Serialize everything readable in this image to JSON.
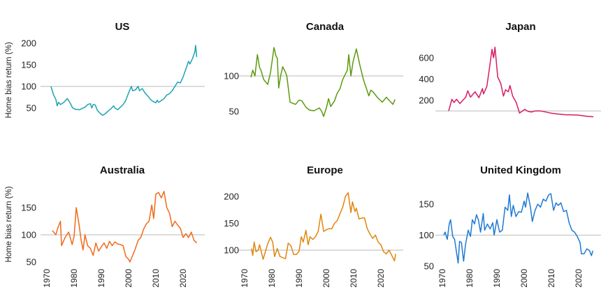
{
  "ylabel": "Home bias return (%)",
  "chart_data": [
    {
      "type": "line",
      "title": "US",
      "color": "#1ba3b3",
      "reference": 100,
      "yticks": [
        50,
        100,
        150,
        200
      ],
      "xticks": [],
      "points": [
        [
          1971.5,
          100
        ],
        [
          1972.5,
          80
        ],
        [
          1973.3,
          70
        ],
        [
          1973.8,
          55
        ],
        [
          1974.3,
          63
        ],
        [
          1975,
          58
        ],
        [
          1976,
          62
        ],
        [
          1977,
          68
        ],
        [
          1977.5,
          72
        ],
        [
          1978.5,
          62
        ],
        [
          1979.5,
          50
        ],
        [
          1980.5,
          47
        ],
        [
          1982,
          46
        ],
        [
          1983,
          49
        ],
        [
          1984,
          52
        ],
        [
          1985,
          58
        ],
        [
          1986,
          60
        ],
        [
          1986.5,
          50
        ],
        [
          1987,
          58
        ],
        [
          1987.8,
          57
        ],
        [
          1988.5,
          45
        ],
        [
          1989.5,
          38
        ],
        [
          1990.5,
          33
        ],
        [
          1991.5,
          37
        ],
        [
          1992.5,
          43
        ],
        [
          1993.5,
          48
        ],
        [
          1994.5,
          55
        ],
        [
          1995,
          50
        ],
        [
          1996,
          46
        ],
        [
          1997,
          52
        ],
        [
          1998,
          58
        ],
        [
          1999,
          68
        ],
        [
          2000,
          85
        ],
        [
          2001,
          100
        ],
        [
          2001.5,
          90
        ],
        [
          2002.5,
          92
        ],
        [
          2003.5,
          100
        ],
        [
          2004,
          90
        ],
        [
          2005,
          95
        ],
        [
          2006,
          85
        ],
        [
          2007,
          78
        ],
        [
          2008,
          70
        ],
        [
          2009,
          65
        ],
        [
          2010,
          62
        ],
        [
          2010.5,
          68
        ],
        [
          2011,
          63
        ],
        [
          2012,
          67
        ],
        [
          2013,
          72
        ],
        [
          2014,
          80
        ],
        [
          2015,
          83
        ],
        [
          2016,
          90
        ],
        [
          2017,
          100
        ],
        [
          2018,
          110
        ],
        [
          2019,
          108
        ],
        [
          2020,
          122
        ],
        [
          2021,
          140
        ],
        [
          2022,
          158
        ],
        [
          2022.5,
          152
        ],
        [
          2023.5,
          165
        ],
        [
          2024.3,
          180
        ],
        [
          2024.6,
          195
        ],
        [
          2025,
          168
        ]
      ]
    },
    {
      "type": "line",
      "title": "Canada",
      "color": "#5b9a0c",
      "reference": 100,
      "yticks": [
        50,
        100
      ],
      "xticks": [],
      "points": [
        [
          1972.3,
          98
        ],
        [
          1973,
          108
        ],
        [
          1973.8,
          100
        ],
        [
          1974.7,
          130
        ],
        [
          1975.5,
          112
        ],
        [
          1976,
          108
        ],
        [
          1977,
          95
        ],
        [
          1978.5,
          88
        ],
        [
          1979.5,
          105
        ],
        [
          1980.8,
          140
        ],
        [
          1981.5,
          128
        ],
        [
          1982,
          125
        ],
        [
          1982.5,
          83
        ],
        [
          1983.2,
          100
        ],
        [
          1984,
          113
        ],
        [
          1985,
          105
        ],
        [
          1985.5,
          100
        ],
        [
          1986.7,
          63
        ],
        [
          1988.7,
          60
        ],
        [
          1990,
          66
        ],
        [
          1991,
          65
        ],
        [
          1992.5,
          56
        ],
        [
          1993.8,
          52
        ],
        [
          1995.5,
          51
        ],
        [
          1997.4,
          55
        ],
        [
          1998.3,
          50
        ],
        [
          1999,
          43
        ],
        [
          2000,
          55
        ],
        [
          2000.8,
          68
        ],
        [
          2001.6,
          57
        ],
        [
          2003,
          65
        ],
        [
          2003.9,
          75
        ],
        [
          2005,
          82
        ],
        [
          2006,
          95
        ],
        [
          2007.7,
          108
        ],
        [
          2008.2,
          130
        ],
        [
          2009,
          100
        ],
        [
          2009.8,
          120
        ],
        [
          2011,
          138
        ],
        [
          2012.3,
          115
        ],
        [
          2013.6,
          95
        ],
        [
          2015.6,
          72
        ],
        [
          2016.3,
          80
        ],
        [
          2017,
          78
        ],
        [
          2018.7,
          70
        ],
        [
          2020.5,
          63
        ],
        [
          2022,
          70
        ],
        [
          2023.2,
          65
        ],
        [
          2024.4,
          60
        ],
        [
          2025.2,
          67
        ]
      ]
    },
    {
      "type": "line",
      "title": "Japan",
      "color": "#d61c63",
      "reference": 100,
      "yticks": [
        200,
        400,
        600
      ],
      "xticks": [],
      "points": [
        [
          1972.3,
          100
        ],
        [
          1973.5,
          210
        ],
        [
          1974.3,
          180
        ],
        [
          1975.2,
          210
        ],
        [
          1976.4,
          170
        ],
        [
          1978.6,
          230
        ],
        [
          1979.3,
          290
        ],
        [
          1980.3,
          230
        ],
        [
          1982,
          280
        ],
        [
          1983.4,
          225
        ],
        [
          1984.7,
          310
        ],
        [
          1985.1,
          260
        ],
        [
          1986.3,
          330
        ],
        [
          1987.2,
          490
        ],
        [
          1988.2,
          680
        ],
        [
          1988.8,
          600
        ],
        [
          1989.3,
          700
        ],
        [
          1990.3,
          420
        ],
        [
          1991.4,
          360
        ],
        [
          1992.4,
          240
        ],
        [
          1993.2,
          300
        ],
        [
          1994.2,
          280
        ],
        [
          1994.8,
          340
        ],
        [
          1995.8,
          240
        ],
        [
          1997.1,
          180
        ],
        [
          1998.3,
          80
        ],
        [
          2000.2,
          115
        ],
        [
          2001.5,
          95
        ],
        [
          2002.7,
          90
        ],
        [
          2004,
          100
        ],
        [
          2006.1,
          100
        ],
        [
          2008,
          90
        ],
        [
          2009.7,
          80
        ],
        [
          2012,
          72
        ],
        [
          2014.9,
          65
        ],
        [
          2017.5,
          63
        ],
        [
          2020,
          60
        ],
        [
          2022.9,
          50
        ],
        [
          2025.4,
          45
        ]
      ]
    },
    {
      "type": "line",
      "title": "Australia",
      "color": "#f06a1c",
      "reference": 100,
      "yticks": [
        50,
        100,
        150
      ],
      "xticks": [
        1970,
        1980,
        1990,
        2000,
        2010,
        2020
      ],
      "points": [
        [
          1972,
          108
        ],
        [
          1973.3,
          100
        ],
        [
          1974,
          112
        ],
        [
          1975,
          125
        ],
        [
          1975.4,
          80
        ],
        [
          1976.7,
          95
        ],
        [
          1978,
          105
        ],
        [
          1979.3,
          82
        ],
        [
          1980,
          97
        ],
        [
          1980.8,
          150
        ],
        [
          1981.8,
          120
        ],
        [
          1982.6,
          90
        ],
        [
          1983.3,
          72
        ],
        [
          1984,
          100
        ],
        [
          1985,
          80
        ],
        [
          1986,
          75
        ],
        [
          1987,
          62
        ],
        [
          1988,
          85
        ],
        [
          1989,
          70
        ],
        [
          1990,
          78
        ],
        [
          1991,
          85
        ],
        [
          1992,
          75
        ],
        [
          1993,
          88
        ],
        [
          1994,
          80
        ],
        [
          1995,
          87
        ],
        [
          1996,
          83
        ],
        [
          1997,
          82
        ],
        [
          1998,
          80
        ],
        [
          1999,
          60
        ],
        [
          2000,
          55
        ],
        [
          2000.5,
          50
        ],
        [
          2001.5,
          62
        ],
        [
          2002.5,
          75
        ],
        [
          2003.5,
          90
        ],
        [
          2004.5,
          95
        ],
        [
          2005.5,
          110
        ],
        [
          2006.5,
          120
        ],
        [
          2007.5,
          125
        ],
        [
          2008.5,
          155
        ],
        [
          2009.2,
          130
        ],
        [
          2010,
          175
        ],
        [
          2011,
          178
        ],
        [
          2012,
          168
        ],
        [
          2013,
          180
        ],
        [
          2014,
          150
        ],
        [
          2015,
          140
        ],
        [
          2016,
          115
        ],
        [
          2017,
          125
        ],
        [
          2018,
          118
        ],
        [
          2019,
          112
        ],
        [
          2020,
          95
        ],
        [
          2021,
          102
        ],
        [
          2022,
          95
        ],
        [
          2023,
          105
        ],
        [
          2024,
          90
        ],
        [
          2025,
          85
        ]
      ]
    },
    {
      "type": "line",
      "title": "Europe",
      "color": "#e0860c",
      "reference": 100,
      "yticks": [
        100,
        150,
        200
      ],
      "xticks": [
        1970,
        1980,
        1990,
        2000,
        2010,
        2020
      ],
      "points": [
        [
          1972.5,
          103
        ],
        [
          1973,
          90
        ],
        [
          1973.5,
          115
        ],
        [
          1974.2,
          97
        ],
        [
          1975,
          100
        ],
        [
          1975.5,
          110
        ],
        [
          1976,
          100
        ],
        [
          1976.8,
          83
        ],
        [
          1977.8,
          100
        ],
        [
          1978.5,
          112
        ],
        [
          1979.5,
          124
        ],
        [
          1980.3,
          115
        ],
        [
          1981,
          88
        ],
        [
          1982,
          103
        ],
        [
          1983,
          88
        ],
        [
          1984,
          86
        ],
        [
          1985,
          84
        ],
        [
          1986,
          113
        ],
        [
          1987,
          108
        ],
        [
          1988,
          92
        ],
        [
          1989,
          92
        ],
        [
          1990,
          98
        ],
        [
          1990.8,
          125
        ],
        [
          1991.5,
          115
        ],
        [
          1992.5,
          137
        ],
        [
          1993.3,
          110
        ],
        [
          1994,
          125
        ],
        [
          1995,
          120
        ],
        [
          1996,
          125
        ],
        [
          1997,
          135
        ],
        [
          1998,
          167
        ],
        [
          1999,
          135
        ],
        [
          2000,
          138
        ],
        [
          2001,
          140
        ],
        [
          2002,
          140
        ],
        [
          2003,
          150
        ],
        [
          2004,
          155
        ],
        [
          2005,
          168
        ],
        [
          2006,
          180
        ],
        [
          2007,
          200
        ],
        [
          2008,
          207
        ],
        [
          2009,
          170
        ],
        [
          2009.6,
          190
        ],
        [
          2010.5,
          172
        ],
        [
          2011,
          178
        ],
        [
          2012,
          158
        ],
        [
          2013,
          160
        ],
        [
          2014,
          160
        ],
        [
          2015,
          140
        ],
        [
          2016,
          130
        ],
        [
          2017,
          122
        ],
        [
          2018,
          128
        ],
        [
          2019,
          115
        ],
        [
          2020,
          110
        ],
        [
          2021,
          97
        ],
        [
          2022,
          93
        ],
        [
          2023,
          100
        ],
        [
          2024,
          90
        ],
        [
          2025,
          80
        ],
        [
          2025.4,
          93
        ]
      ]
    },
    {
      "type": "line",
      "title": "United Kingdom",
      "color": "#1f7ad3",
      "reference": 100,
      "yticks": [
        50,
        100,
        150
      ],
      "xticks": [
        1970,
        1980,
        1990,
        2000,
        2010,
        2020
      ],
      "points": [
        [
          1970.5,
          100
        ],
        [
          1971,
          105
        ],
        [
          1971.8,
          93
        ],
        [
          1972.5,
          118
        ],
        [
          1973,
          125
        ],
        [
          1973.8,
          98
        ],
        [
          1974.5,
          93
        ],
        [
          1975,
          78
        ],
        [
          1975.8,
          55
        ],
        [
          1976.3,
          90
        ],
        [
          1977,
          88
        ],
        [
          1977.8,
          58
        ],
        [
          1978.5,
          85
        ],
        [
          1979.5,
          108
        ],
        [
          1980.3,
          98
        ],
        [
          1981,
          125
        ],
        [
          1981.8,
          118
        ],
        [
          1982.5,
          133
        ],
        [
          1983.2,
          125
        ],
        [
          1984,
          105
        ],
        [
          1985,
          135
        ],
        [
          1985.5,
          108
        ],
        [
          1986.5,
          118
        ],
        [
          1987.5,
          110
        ],
        [
          1988.5,
          120
        ],
        [
          1989,
          100
        ],
        [
          1990,
          125
        ],
        [
          1991,
          105
        ],
        [
          1992,
          108
        ],
        [
          1993,
          145
        ],
        [
          1994,
          140
        ],
        [
          1994.6,
          165
        ],
        [
          1995.3,
          130
        ],
        [
          1996,
          148
        ],
        [
          1997,
          130
        ],
        [
          1998,
          138
        ],
        [
          1999,
          137
        ],
        [
          2000,
          155
        ],
        [
          2000.5,
          145
        ],
        [
          2001.3,
          168
        ],
        [
          2002.3,
          145
        ],
        [
          2003,
          122
        ],
        [
          2004,
          140
        ],
        [
          2005,
          150
        ],
        [
          2006,
          145
        ],
        [
          2007,
          158
        ],
        [
          2008,
          155
        ],
        [
          2009,
          165
        ],
        [
          2009.8,
          167
        ],
        [
          2010.8,
          140
        ],
        [
          2011.7,
          152
        ],
        [
          2012.5,
          148
        ],
        [
          2013.5,
          152
        ],
        [
          2014.5,
          138
        ],
        [
          2015.5,
          140
        ],
        [
          2016.5,
          120
        ],
        [
          2017.5,
          108
        ],
        [
          2018.5,
          105
        ],
        [
          2019.5,
          98
        ],
        [
          2020.5,
          88
        ],
        [
          2021,
          70
        ],
        [
          2022,
          70
        ],
        [
          2023,
          78
        ],
        [
          2024,
          75
        ],
        [
          2024.7,
          67
        ],
        [
          2025.2,
          75
        ]
      ]
    }
  ]
}
